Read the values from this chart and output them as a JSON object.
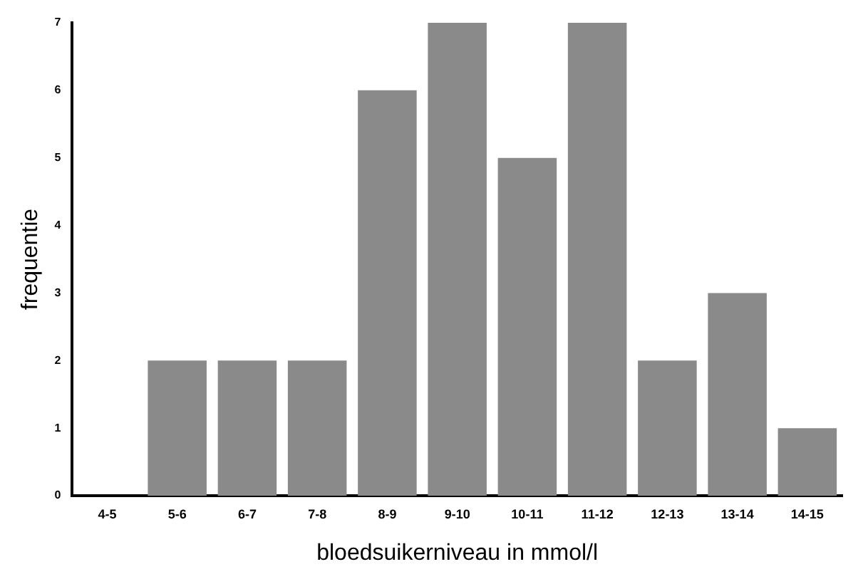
{
  "chart_data": {
    "type": "bar",
    "xlabel": "bloedsuikerniveau in mmol/l",
    "ylabel": "frequentie",
    "categories": [
      "4-5",
      "5-6",
      "6-7",
      "7-8",
      "8-9",
      "9-10",
      "10-11",
      "11-12",
      "12-13",
      "13-14",
      "14-15"
    ],
    "values": [
      0,
      2,
      2,
      2,
      6,
      7,
      5,
      7,
      2,
      3,
      1
    ],
    "color": "#8a8a8a",
    "ylim": [
      0,
      7
    ],
    "yticks": [
      0,
      1,
      2,
      3,
      4,
      5,
      6,
      7
    ],
    "grid": false,
    "legend": false
  }
}
